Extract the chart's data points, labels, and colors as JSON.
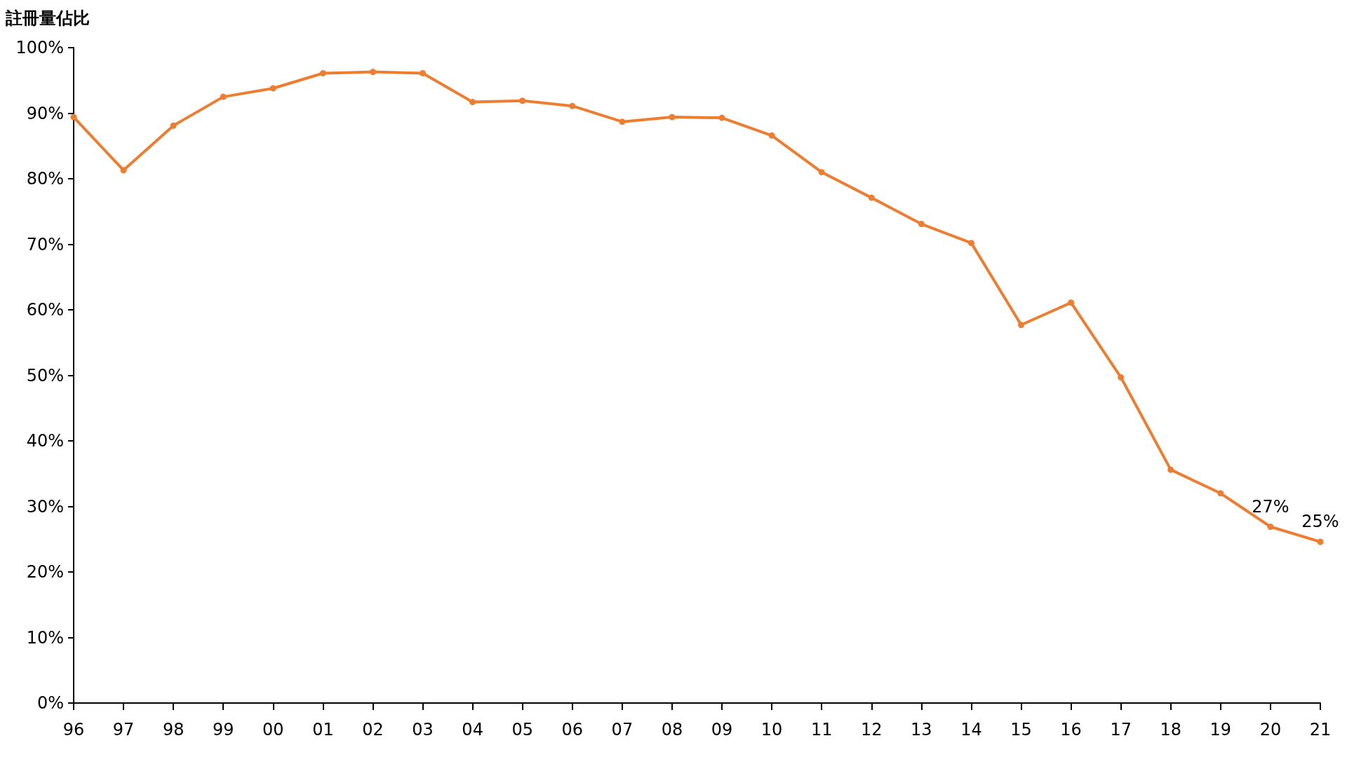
{
  "chart_data": {
    "type": "line",
    "ylabel": "註冊量佔比",
    "categories": [
      "96",
      "97",
      "98",
      "99",
      "00",
      "01",
      "02",
      "03",
      "04",
      "05",
      "06",
      "07",
      "08",
      "09",
      "10",
      "11",
      "12",
      "13",
      "14",
      "15",
      "16",
      "17",
      "18",
      "19",
      "20",
      "21"
    ],
    "series": [
      {
        "color": "#ed7d31",
        "values": [
          89.4,
          81.3,
          88.1,
          92.5,
          93.8,
          96.1,
          96.3,
          96.1,
          91.7,
          91.9,
          91.1,
          88.7,
          89.4,
          89.3,
          86.6,
          81.0,
          77.1,
          73.1,
          70.2,
          57.7,
          61.1,
          49.7,
          35.6,
          32.0,
          26.9,
          24.6
        ],
        "value_labels": [
          null,
          null,
          null,
          null,
          null,
          null,
          null,
          null,
          null,
          null,
          null,
          null,
          null,
          null,
          null,
          null,
          null,
          null,
          null,
          null,
          null,
          null,
          null,
          null,
          "27%",
          "25%"
        ]
      }
    ],
    "ylim": [
      0,
      100
    ],
    "yticks": [
      {
        "value": 0,
        "label": "0%"
      },
      {
        "value": 10,
        "label": "10%"
      },
      {
        "value": 20,
        "label": "20%"
      },
      {
        "value": 30,
        "label": "30%"
      },
      {
        "value": 40,
        "label": "40%"
      },
      {
        "value": 50,
        "label": "50%"
      },
      {
        "value": 60,
        "label": "60%"
      },
      {
        "value": 70,
        "label": "70%"
      },
      {
        "value": 80,
        "label": "80%"
      },
      {
        "value": 90,
        "label": "90%"
      },
      {
        "value": 100,
        "label": "100%"
      }
    ],
    "grid": false,
    "marker": "circle",
    "line_style": "solid"
  }
}
